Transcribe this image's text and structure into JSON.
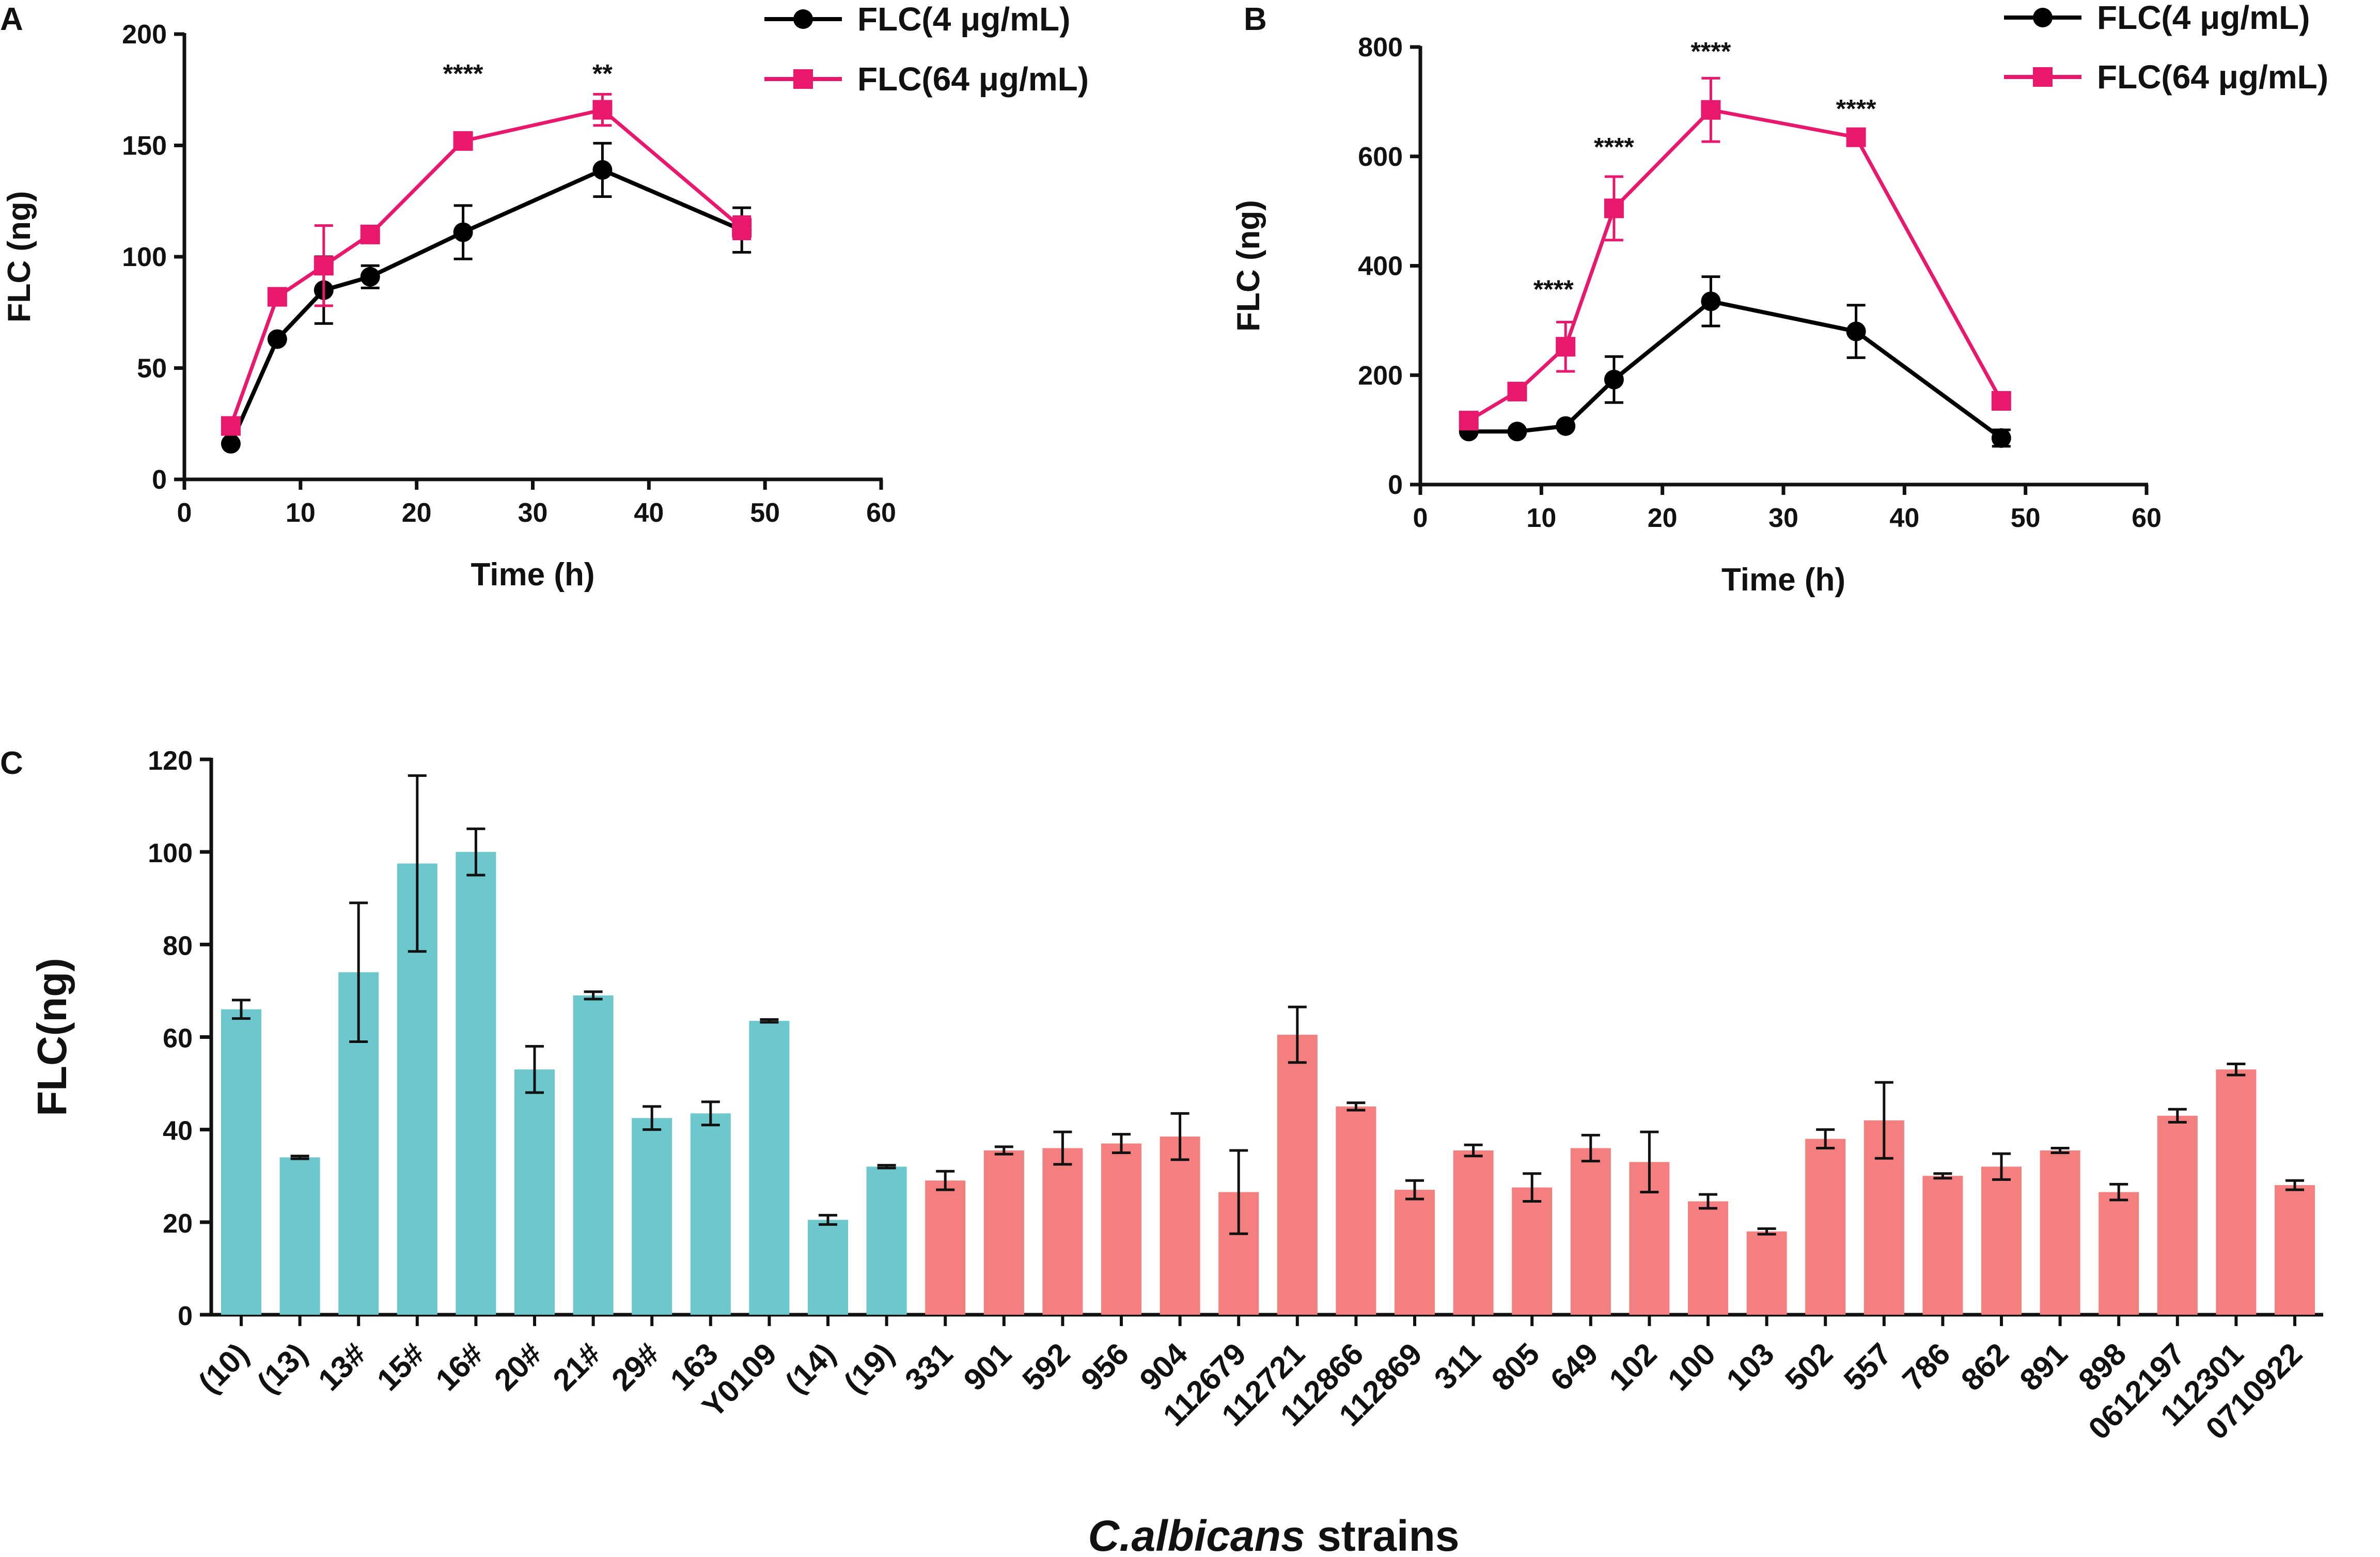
{
  "chart_data": [
    {
      "panel": "A",
      "type": "line",
      "xlabel": "Time (h)",
      "ylabel": "FLC (ng)",
      "xlim": [
        0,
        60
      ],
      "ylim": [
        0,
        200
      ],
      "xticks": [
        0,
        10,
        20,
        30,
        40,
        50,
        60
      ],
      "yticks": [
        0,
        50,
        100,
        150,
        200
      ],
      "legend_position": "top-right",
      "x": [
        4,
        8,
        12,
        16,
        24,
        36,
        48
      ],
      "series": [
        {
          "name": "FLC(4 μg/mL)",
          "color": "#000000",
          "marker": "circle",
          "values": [
            16,
            63,
            85,
            91,
            111,
            139,
            112
          ],
          "errors": [
            0,
            0,
            15,
            5,
            12,
            12,
            10
          ]
        },
        {
          "name": "FLC(64 μg/mL)",
          "color": "#e8196d",
          "marker": "square",
          "values": [
            24,
            82,
            96,
            110,
            152,
            166,
            113
          ],
          "errors": [
            0,
            0,
            18,
            0,
            0,
            7,
            5
          ]
        }
      ],
      "annotations": [
        {
          "x": 24,
          "y": 183,
          "text": "****"
        },
        {
          "x": 36,
          "y": 183,
          "text": "**"
        }
      ]
    },
    {
      "panel": "B",
      "type": "line",
      "xlabel": "Time (h)",
      "ylabel": "FLC (ng)",
      "xlim": [
        0,
        60
      ],
      "ylim": [
        0,
        800
      ],
      "xticks": [
        0,
        10,
        20,
        30,
        40,
        50,
        60
      ],
      "yticks": [
        0,
        200,
        400,
        600,
        800
      ],
      "legend_position": "top-right",
      "x": [
        4,
        8,
        12,
        16,
        24,
        36,
        48
      ],
      "series": [
        {
          "name": "FLC(4 μg/mL)",
          "color": "#000000",
          "marker": "circle",
          "values": [
            97,
            97,
            107,
            192,
            335,
            280,
            85
          ],
          "errors": [
            0,
            0,
            0,
            42,
            45,
            48,
            15
          ]
        },
        {
          "name": "FLC(64 μg/mL)",
          "color": "#e8196d",
          "marker": "square",
          "values": [
            117,
            170,
            252,
            505,
            685,
            635,
            153
          ],
          "errors": [
            0,
            0,
            45,
            58,
            58,
            0,
            0
          ]
        }
      ],
      "annotations": [
        {
          "x": 11,
          "y": 360,
          "text": "****"
        },
        {
          "x": 16,
          "y": 620,
          "text": "****"
        },
        {
          "x": 24,
          "y": 795,
          "text": "****"
        },
        {
          "x": 36,
          "y": 690,
          "text": "****"
        }
      ]
    },
    {
      "panel": "C",
      "type": "bar",
      "title": "C.albicans strains",
      "title_italic": "C.albicans",
      "title_rest": " strains",
      "ylabel": "FLC(ng)",
      "ylim": [
        0,
        120
      ],
      "yticks": [
        0,
        20,
        40,
        60,
        80,
        100,
        120
      ],
      "colors": {
        "group1": "#6cc8cc",
        "group2": "#f47f7f"
      },
      "categories": [
        "(10)",
        "(13)",
        "13#",
        "15#",
        "16#",
        "20#",
        "21#",
        "29#",
        "163",
        "Y0109",
        "(14)",
        "(19)",
        "331",
        "901",
        "592",
        "956",
        "904",
        "112679",
        "112721",
        "112866",
        "112869",
        "311",
        "805",
        "649",
        "102",
        "100",
        "103",
        "502",
        "557",
        "786",
        "862",
        "891",
        "898",
        "0612197",
        "112301",
        "0710922"
      ],
      "values": [
        66,
        34,
        74,
        97.5,
        100,
        53,
        69,
        42.5,
        43.5,
        63.5,
        20.5,
        32,
        29,
        35.5,
        36,
        37,
        38.5,
        26.5,
        60.5,
        45,
        27,
        35.5,
        27.5,
        36,
        33,
        24.5,
        18,
        38,
        42,
        30,
        32,
        35.5,
        26.5,
        43,
        53,
        28
      ],
      "errors": [
        2,
        0.3,
        15,
        19,
        5,
        5,
        0.8,
        2.5,
        2.5,
        0.3,
        1,
        0.3,
        2,
        0.8,
        3.5,
        2,
        5,
        9,
        6,
        0.8,
        2,
        1.2,
        3,
        2.8,
        6.5,
        1.5,
        0.6,
        2,
        8.2,
        0.5,
        2.8,
        0.5,
        1.7,
        1.4,
        1.2,
        1
      ],
      "groups": [
        "group1",
        "group1",
        "group1",
        "group1",
        "group1",
        "group1",
        "group1",
        "group1",
        "group1",
        "group1",
        "group1",
        "group1",
        "group2",
        "group2",
        "group2",
        "group2",
        "group2",
        "group2",
        "group2",
        "group2",
        "group2",
        "group2",
        "group2",
        "group2",
        "group2",
        "group2",
        "group2",
        "group2",
        "group2",
        "group2",
        "group2",
        "group2",
        "group2",
        "group2",
        "group2",
        "group2"
      ]
    }
  ]
}
